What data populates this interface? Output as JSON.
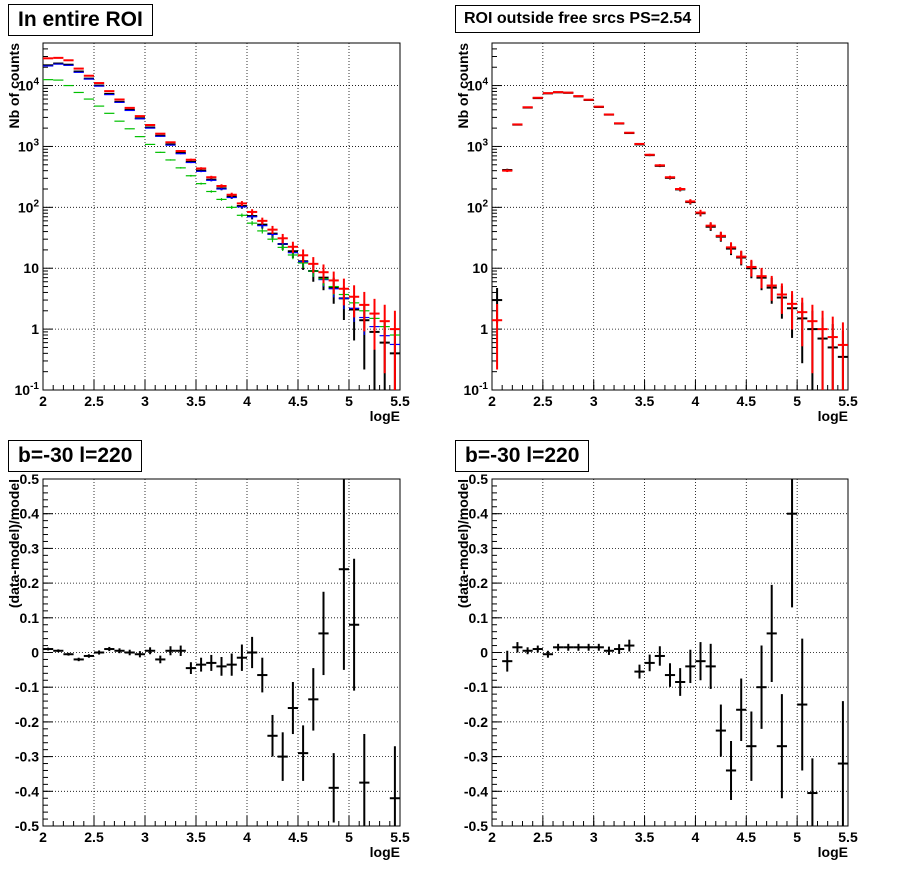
{
  "panels": [
    {
      "title": "In entire ROI"
    },
    {
      "title": "ROI outside free srcs PS=2.54"
    },
    {
      "title": "b=-30 l=220"
    },
    {
      "title": "b=-30 l=220"
    }
  ],
  "chart_data": [
    {
      "type": "scatter",
      "title": "In entire ROI",
      "xlabel": "logE",
      "ylabel": "Nb of counts",
      "xlim": [
        2,
        5.5
      ],
      "ylim": [
        0.1,
        50000
      ],
      "yscale": "log",
      "grid": true,
      "x_ticks": [
        "2",
        "2.5",
        "3",
        "3.5",
        "4",
        "4.5",
        "5",
        "5.5"
      ],
      "y_ticks": [
        "10^-1",
        "1",
        "10",
        "10^2",
        "10^3",
        "10^4"
      ],
      "series": [
        {
          "color": "#000000",
          "style": "errorbar",
          "x": [
            2.05,
            2.15,
            2.25,
            2.35,
            2.45,
            2.55,
            2.65,
            2.75,
            2.85,
            2.95,
            3.05,
            3.15,
            3.25,
            3.35,
            3.45,
            3.55,
            3.65,
            3.75,
            3.85,
            3.95,
            4.05,
            4.15,
            4.25,
            4.35,
            4.45,
            4.55,
            4.65,
            4.75,
            4.85,
            4.95,
            5.05,
            5.15,
            5.25,
            5.35,
            5.45
          ],
          "y": [
            21500,
            23000,
            22000,
            17000,
            13000,
            10000,
            7300,
            5400,
            4000,
            2900,
            2050,
            1500,
            1080,
            780,
            560,
            400,
            285,
            205,
            150,
            105,
            72,
            52,
            37,
            25,
            19,
            13,
            9,
            7,
            4.8,
            3.2,
            2.1,
            1.4,
            0.9,
            0.6,
            0.4
          ]
        },
        {
          "color": "#0000ff",
          "style": "step",
          "x": [
            2.05,
            2.15,
            2.25,
            2.35,
            2.45,
            2.55,
            2.65,
            2.75,
            2.85,
            2.95,
            3.05,
            3.15,
            3.25,
            3.35,
            3.45,
            3.55,
            3.65,
            3.75,
            3.85,
            3.95,
            4.05,
            4.15,
            4.25,
            4.35,
            4.45,
            4.55,
            4.65,
            4.75,
            4.85,
            4.95,
            5.05,
            5.15,
            5.25,
            5.35,
            5.45
          ],
          "y": [
            21000,
            22500,
            21500,
            16500,
            12800,
            9800,
            7100,
            5300,
            3900,
            2850,
            2000,
            1470,
            1050,
            760,
            545,
            390,
            278,
            200,
            145,
            102,
            70,
            50,
            36,
            25,
            18,
            12.8,
            9,
            6.5,
            4.6,
            3.2,
            2.2,
            1.55,
            1.1,
            0.78,
            0.56
          ]
        },
        {
          "color": "#00c000",
          "style": "step",
          "x": [
            2.05,
            2.15,
            2.25,
            2.35,
            2.45,
            2.55,
            2.65,
            2.75,
            2.85,
            2.95,
            3.05,
            3.15,
            3.25,
            3.35,
            3.45,
            3.55,
            3.65,
            3.75,
            3.85,
            3.95,
            4.05,
            4.15,
            4.25,
            4.35,
            4.45,
            4.55,
            4.65,
            4.75,
            4.85,
            4.95,
            5.05,
            5.15,
            5.25,
            5.35,
            5.45
          ],
          "y": [
            12500,
            12300,
            10000,
            7700,
            6000,
            4600,
            3500,
            2600,
            1950,
            1450,
            1080,
            800,
            600,
            445,
            330,
            245,
            182,
            135,
            100,
            74,
            55,
            41,
            30,
            22,
            16.5,
            12.2,
            9,
            6.7,
            5,
            3.7,
            2.7,
            2,
            1.5,
            1.1,
            0.8
          ]
        },
        {
          "color": "#ff0000",
          "style": "errorbar",
          "x": [
            2.05,
            2.15,
            2.25,
            2.35,
            2.45,
            2.55,
            2.65,
            2.75,
            2.85,
            2.95,
            3.05,
            3.15,
            3.25,
            3.35,
            3.45,
            3.55,
            3.65,
            3.75,
            3.85,
            3.95,
            4.05,
            4.15,
            4.25,
            4.35,
            4.45,
            4.55,
            4.65,
            4.75,
            4.85,
            4.95,
            5.05,
            5.15,
            5.25,
            5.35,
            5.45
          ],
          "y": [
            28000,
            28500,
            26000,
            19000,
            14500,
            11000,
            8100,
            5900,
            4300,
            3150,
            2250,
            1620,
            1170,
            840,
            605,
            435,
            312,
            224,
            161,
            116,
            84,
            60,
            43,
            31,
            22.5,
            16.3,
            11.8,
            8.6,
            6.3,
            4.6,
            3.4,
            2.5,
            1.8,
            1.35,
            1.0
          ]
        }
      ]
    },
    {
      "type": "scatter",
      "title": "ROI outside free srcs PS=2.54",
      "xlabel": "logE",
      "ylabel": "Nb of counts",
      "xlim": [
        2,
        5.5
      ],
      "ylim": [
        0.1,
        50000
      ],
      "yscale": "log",
      "grid": true,
      "x_ticks": [
        "2",
        "2.5",
        "3",
        "3.5",
        "4",
        "4.5",
        "5",
        "5.5"
      ],
      "y_ticks": [
        "10^-1",
        "1",
        "10",
        "10^2",
        "10^3",
        "10^4"
      ],
      "series": [
        {
          "color": "#000000",
          "style": "errorbar",
          "x": [
            2.05,
            2.15,
            2.25,
            2.35,
            2.45,
            2.55,
            2.65,
            2.75,
            2.85,
            2.95,
            3.05,
            3.15,
            3.25,
            3.35,
            3.45,
            3.55,
            3.65,
            3.75,
            3.85,
            3.95,
            4.05,
            4.15,
            4.25,
            4.35,
            4.45,
            4.55,
            4.65,
            4.75,
            4.85,
            4.95,
            5.05,
            5.15,
            5.25,
            5.35,
            5.45
          ],
          "y": [
            3,
            410,
            2280,
            4350,
            6220,
            7450,
            7750,
            7600,
            6650,
            5800,
            4450,
            3330,
            2380,
            1660,
            1080,
            720,
            480,
            305,
            197,
            122,
            80,
            48,
            33,
            21,
            15,
            10,
            7,
            4.8,
            3.3,
            2.2,
            1.5,
            1.0,
            0.7,
            0.5,
            0.35
          ]
        },
        {
          "color": "#ff0000",
          "style": "errorbar",
          "x": [
            2.05,
            2.15,
            2.25,
            2.35,
            2.45,
            2.55,
            2.65,
            2.75,
            2.85,
            2.95,
            3.05,
            3.15,
            3.25,
            3.35,
            3.45,
            3.55,
            3.65,
            3.75,
            3.85,
            3.95,
            4.05,
            4.15,
            4.25,
            4.35,
            4.45,
            4.55,
            4.65,
            4.75,
            4.85,
            4.95,
            5.05,
            5.15,
            5.25,
            5.35,
            5.45
          ],
          "y": [
            1.4,
            400,
            2300,
            4400,
            6300,
            7500,
            7800,
            7650,
            6700,
            5850,
            4500,
            3350,
            2400,
            1680,
            1100,
            730,
            490,
            312,
            200,
            125,
            82,
            50,
            34,
            22,
            15.5,
            10.5,
            7.4,
            5.2,
            3.7,
            2.6,
            1.9,
            1.35,
            1.0,
            0.74,
            0.55
          ]
        }
      ]
    },
    {
      "type": "scatter",
      "title": "b=-30 l=220",
      "xlabel": "logE",
      "ylabel": "(data-model)/model",
      "xlim": [
        2,
        5.5
      ],
      "ylim": [
        -0.5,
        0.5
      ],
      "grid": true,
      "x_ticks": [
        "2",
        "2.5",
        "3",
        "3.5",
        "4",
        "4.5",
        "5",
        "5.5"
      ],
      "y_ticks": [
        "-0.5",
        "-0.4",
        "-0.3",
        "-0.2",
        "-0.1",
        "0",
        "0.1",
        "0.2",
        "0.3",
        "0.4",
        "0.5"
      ],
      "series": [
        {
          "color": "#000000",
          "style": "errorbar",
          "x": [
            2.05,
            2.15,
            2.25,
            2.35,
            2.45,
            2.55,
            2.65,
            2.75,
            2.85,
            2.95,
            3.05,
            3.15,
            3.25,
            3.35,
            3.45,
            3.55,
            3.65,
            3.75,
            3.85,
            3.95,
            4.05,
            4.15,
            4.25,
            4.35,
            4.45,
            4.55,
            4.65,
            4.75,
            4.85,
            4.95,
            5.05,
            5.15,
            5.25,
            5.35,
            5.45
          ],
          "y": [
            0.01,
            0.005,
            -0.005,
            -0.02,
            -0.01,
            0.0,
            0.01,
            0.005,
            0.0,
            -0.005,
            0.005,
            -0.02,
            0.005,
            0.005,
            -0.045,
            -0.035,
            -0.03,
            -0.04,
            -0.035,
            -0.015,
            0.0,
            -0.065,
            -0.24,
            -0.3,
            -0.16,
            -0.29,
            -0.135,
            0.055,
            -0.39,
            0.24,
            0.08,
            -0.375,
            null,
            null,
            -0.42
          ],
          "err": [
            0.004,
            0.004,
            0.004,
            0.005,
            0.005,
            0.006,
            0.006,
            0.007,
            0.008,
            0.009,
            0.01,
            0.011,
            0.013,
            0.015,
            0.017,
            0.02,
            0.023,
            0.027,
            0.032,
            0.038,
            0.045,
            0.05,
            0.06,
            0.07,
            0.075,
            0.08,
            0.09,
            0.12,
            0.1,
            0.29,
            0.19,
            0.14,
            null,
            null,
            0.15
          ]
        }
      ]
    },
    {
      "type": "scatter",
      "title": "b=-30 l=220",
      "xlabel": "logE",
      "ylabel": "(data-model)/model",
      "xlim": [
        2,
        5.5
      ],
      "ylim": [
        -0.5,
        0.5
      ],
      "grid": true,
      "x_ticks": [
        "2",
        "2.5",
        "3",
        "3.5",
        "4",
        "4.5",
        "5",
        "5.5"
      ],
      "y_ticks": [
        "-0.5",
        "-0.4",
        "-0.3",
        "-0.2",
        "-0.1",
        "0",
        "0.1",
        "0.2",
        "0.3",
        "0.4",
        "0.5"
      ],
      "series": [
        {
          "color": "#000000",
          "style": "errorbar",
          "x": [
            2.15,
            2.25,
            2.35,
            2.45,
            2.55,
            2.65,
            2.75,
            2.85,
            2.95,
            3.05,
            3.15,
            3.25,
            3.35,
            3.45,
            3.55,
            3.65,
            3.75,
            3.85,
            3.95,
            4.05,
            4.15,
            4.25,
            4.35,
            4.45,
            4.55,
            4.65,
            4.75,
            4.85,
            4.95,
            5.05,
            5.15,
            5.45
          ],
          "y": [
            -0.025,
            0.015,
            0.005,
            0.01,
            -0.005,
            0.015,
            0.015,
            0.015,
            0.015,
            0.015,
            0.005,
            0.01,
            0.02,
            -0.055,
            -0.03,
            -0.01,
            -0.065,
            -0.085,
            -0.04,
            -0.025,
            -0.04,
            -0.225,
            -0.34,
            -0.165,
            -0.27,
            -0.1,
            0.055,
            -0.27,
            0.4,
            -0.15,
            -0.405,
            -0.32
          ],
          "err": [
            0.03,
            0.015,
            0.01,
            0.01,
            0.01,
            0.01,
            0.01,
            0.01,
            0.01,
            0.01,
            0.012,
            0.014,
            0.017,
            0.02,
            0.024,
            0.028,
            0.034,
            0.04,
            0.048,
            0.055,
            0.065,
            0.075,
            0.085,
            0.09,
            0.1,
            0.12,
            0.14,
            0.15,
            0.27,
            0.19,
            0.1,
            0.18
          ]
        }
      ]
    }
  ]
}
